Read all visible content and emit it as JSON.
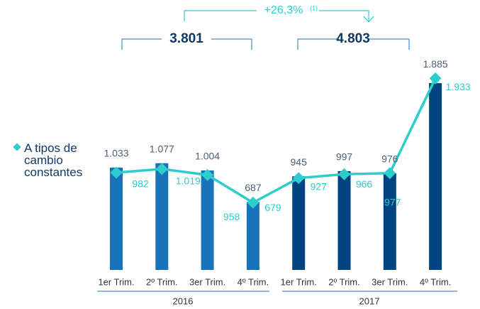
{
  "chart_data": {
    "type": "bar_line",
    "categories": [
      "1er Trim.",
      "2º Trim.",
      "3er Trim.",
      "4º Trim.",
      "1er Trim.",
      "2º Trim.",
      "3er Trim.",
      "4º Trim."
    ],
    "series": [
      {
        "name": null,
        "type": "bar",
        "colors": [
          "#1973b8",
          "#1973b8",
          "#1973b8",
          "#1973b8",
          "#004481",
          "#004481",
          "#004481",
          "#004481"
        ],
        "values": [
          1033,
          1077,
          1004,
          687,
          945,
          997,
          976,
          1885
        ],
        "value_labels": [
          "1.033",
          "1.077",
          "1.004",
          "687",
          "945",
          "997",
          "976",
          "1.885"
        ]
      },
      {
        "name": "A tipos de cambio constantes",
        "type": "line",
        "color": "#2dcccd",
        "values": [
          982,
          1019,
          958,
          679,
          927,
          966,
          977,
          1933
        ],
        "value_labels": [
          "982",
          "1.019",
          "958",
          "679",
          "927",
          "966",
          "977",
          "1.933"
        ]
      }
    ],
    "groups": [
      {
        "name": "2016",
        "total": {
          "value": 3801,
          "label": "3.801"
        }
      },
      {
        "name": "2017",
        "total": {
          "value": 4803,
          "label": "4.803"
        }
      }
    ],
    "change": {
      "value": 26.3,
      "label": "+26,3%"
    },
    "change_note": "(1)",
    "ylim": [
      0,
      2000
    ]
  }
}
